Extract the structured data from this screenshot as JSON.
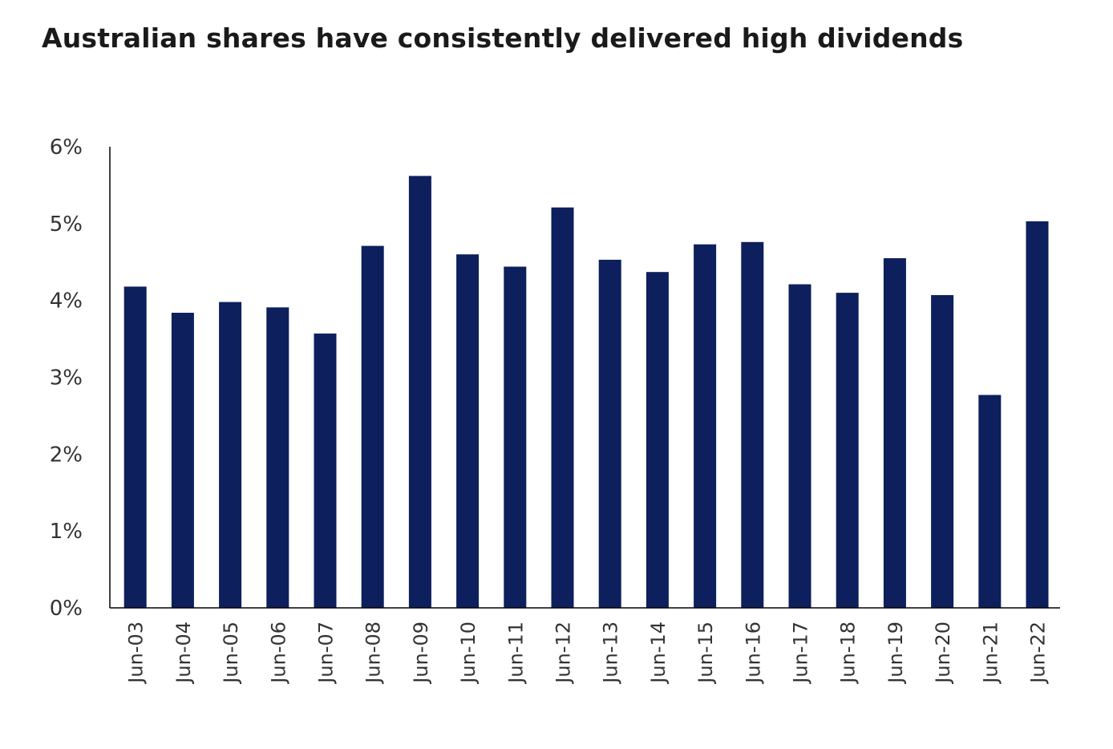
{
  "chart_data": {
    "type": "bar",
    "title": "Australian shares have consistently delivered high dividends",
    "xlabel": "",
    "ylabel": "",
    "ylim": [
      0,
      6
    ],
    "y_ticks": [
      0,
      1,
      2,
      3,
      4,
      5,
      6
    ],
    "y_tick_labels": [
      "0%",
      "1%",
      "2%",
      "3%",
      "4%",
      "5%",
      "6%"
    ],
    "grid": false,
    "categories": [
      "Jun-03",
      "Jun-04",
      "Jun-05",
      "Jun-06",
      "Jun-07",
      "Jun-08",
      "Jun-09",
      "Jun-10",
      "Jun-11",
      "Jun-12",
      "Jun-13",
      "Jun-14",
      "Jun-15",
      "Jun-16",
      "Jun-17",
      "Jun-18",
      "Jun-19",
      "Jun-20",
      "Jun-21",
      "Jun-22"
    ],
    "values": [
      4.18,
      3.84,
      3.98,
      3.91,
      3.57,
      4.71,
      5.62,
      4.6,
      4.44,
      5.21,
      4.53,
      4.37,
      4.73,
      4.76,
      4.21,
      4.1,
      4.55,
      4.07,
      2.77,
      5.03
    ],
    "bar_color": "#0d1f5c",
    "axis_color": "#000000"
  }
}
